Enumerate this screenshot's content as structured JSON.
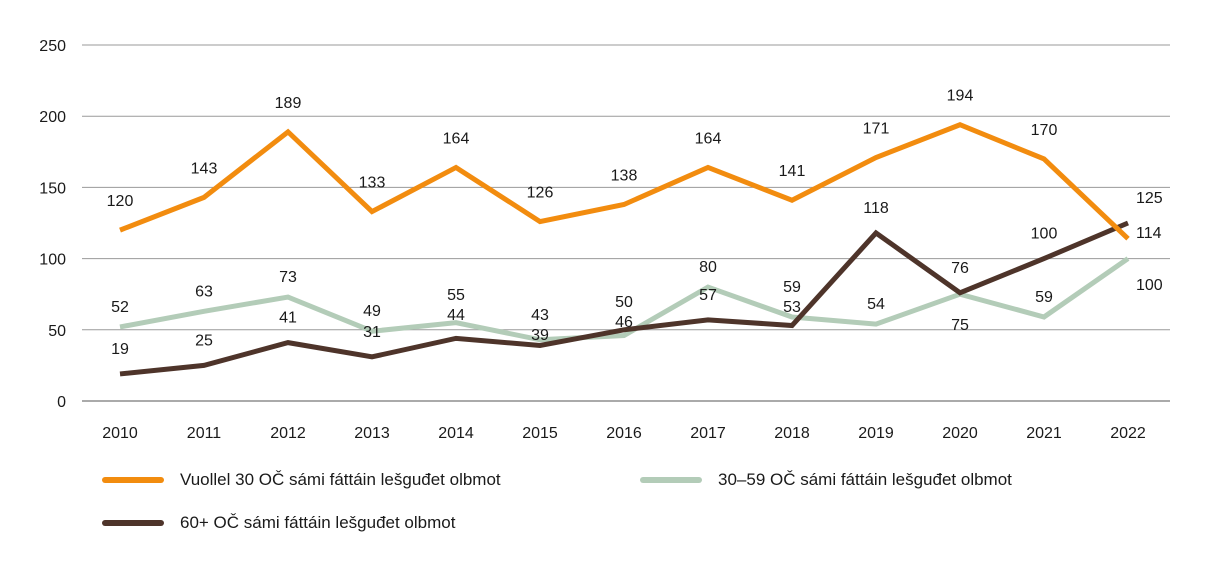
{
  "chart_data": {
    "type": "line",
    "x": [
      "2010",
      "2011",
      "2012",
      "2013",
      "2014",
      "2015",
      "2016",
      "2017",
      "2018",
      "2019",
      "2020",
      "2021",
      "2022"
    ],
    "ylim": [
      0,
      250
    ],
    "yticks": [
      0,
      50,
      100,
      150,
      200,
      250
    ],
    "grid": "horizontal",
    "legend_placement": "bottom",
    "series": [
      {
        "name": "Vuollel 30 OČ sámi fáttáin lešguđet olbmot",
        "color": "#f28c0f",
        "values": [
          120,
          143,
          189,
          133,
          164,
          126,
          138,
          164,
          141,
          171,
          194,
          170,
          114
        ]
      },
      {
        "name": "30–59 OČ sámi fáttáin lešguđet olbmot",
        "color": "#b3ccb8",
        "values": [
          52,
          63,
          73,
          49,
          55,
          43,
          46,
          80,
          59,
          54,
          75,
          59,
          100
        ]
      },
      {
        "name": "60+ OČ sámi fáttáin lešguđet olbmot",
        "color": "#4e342a",
        "values": [
          19,
          25,
          41,
          31,
          44,
          39,
          50,
          57,
          53,
          118,
          76,
          100,
          125
        ]
      }
    ]
  }
}
